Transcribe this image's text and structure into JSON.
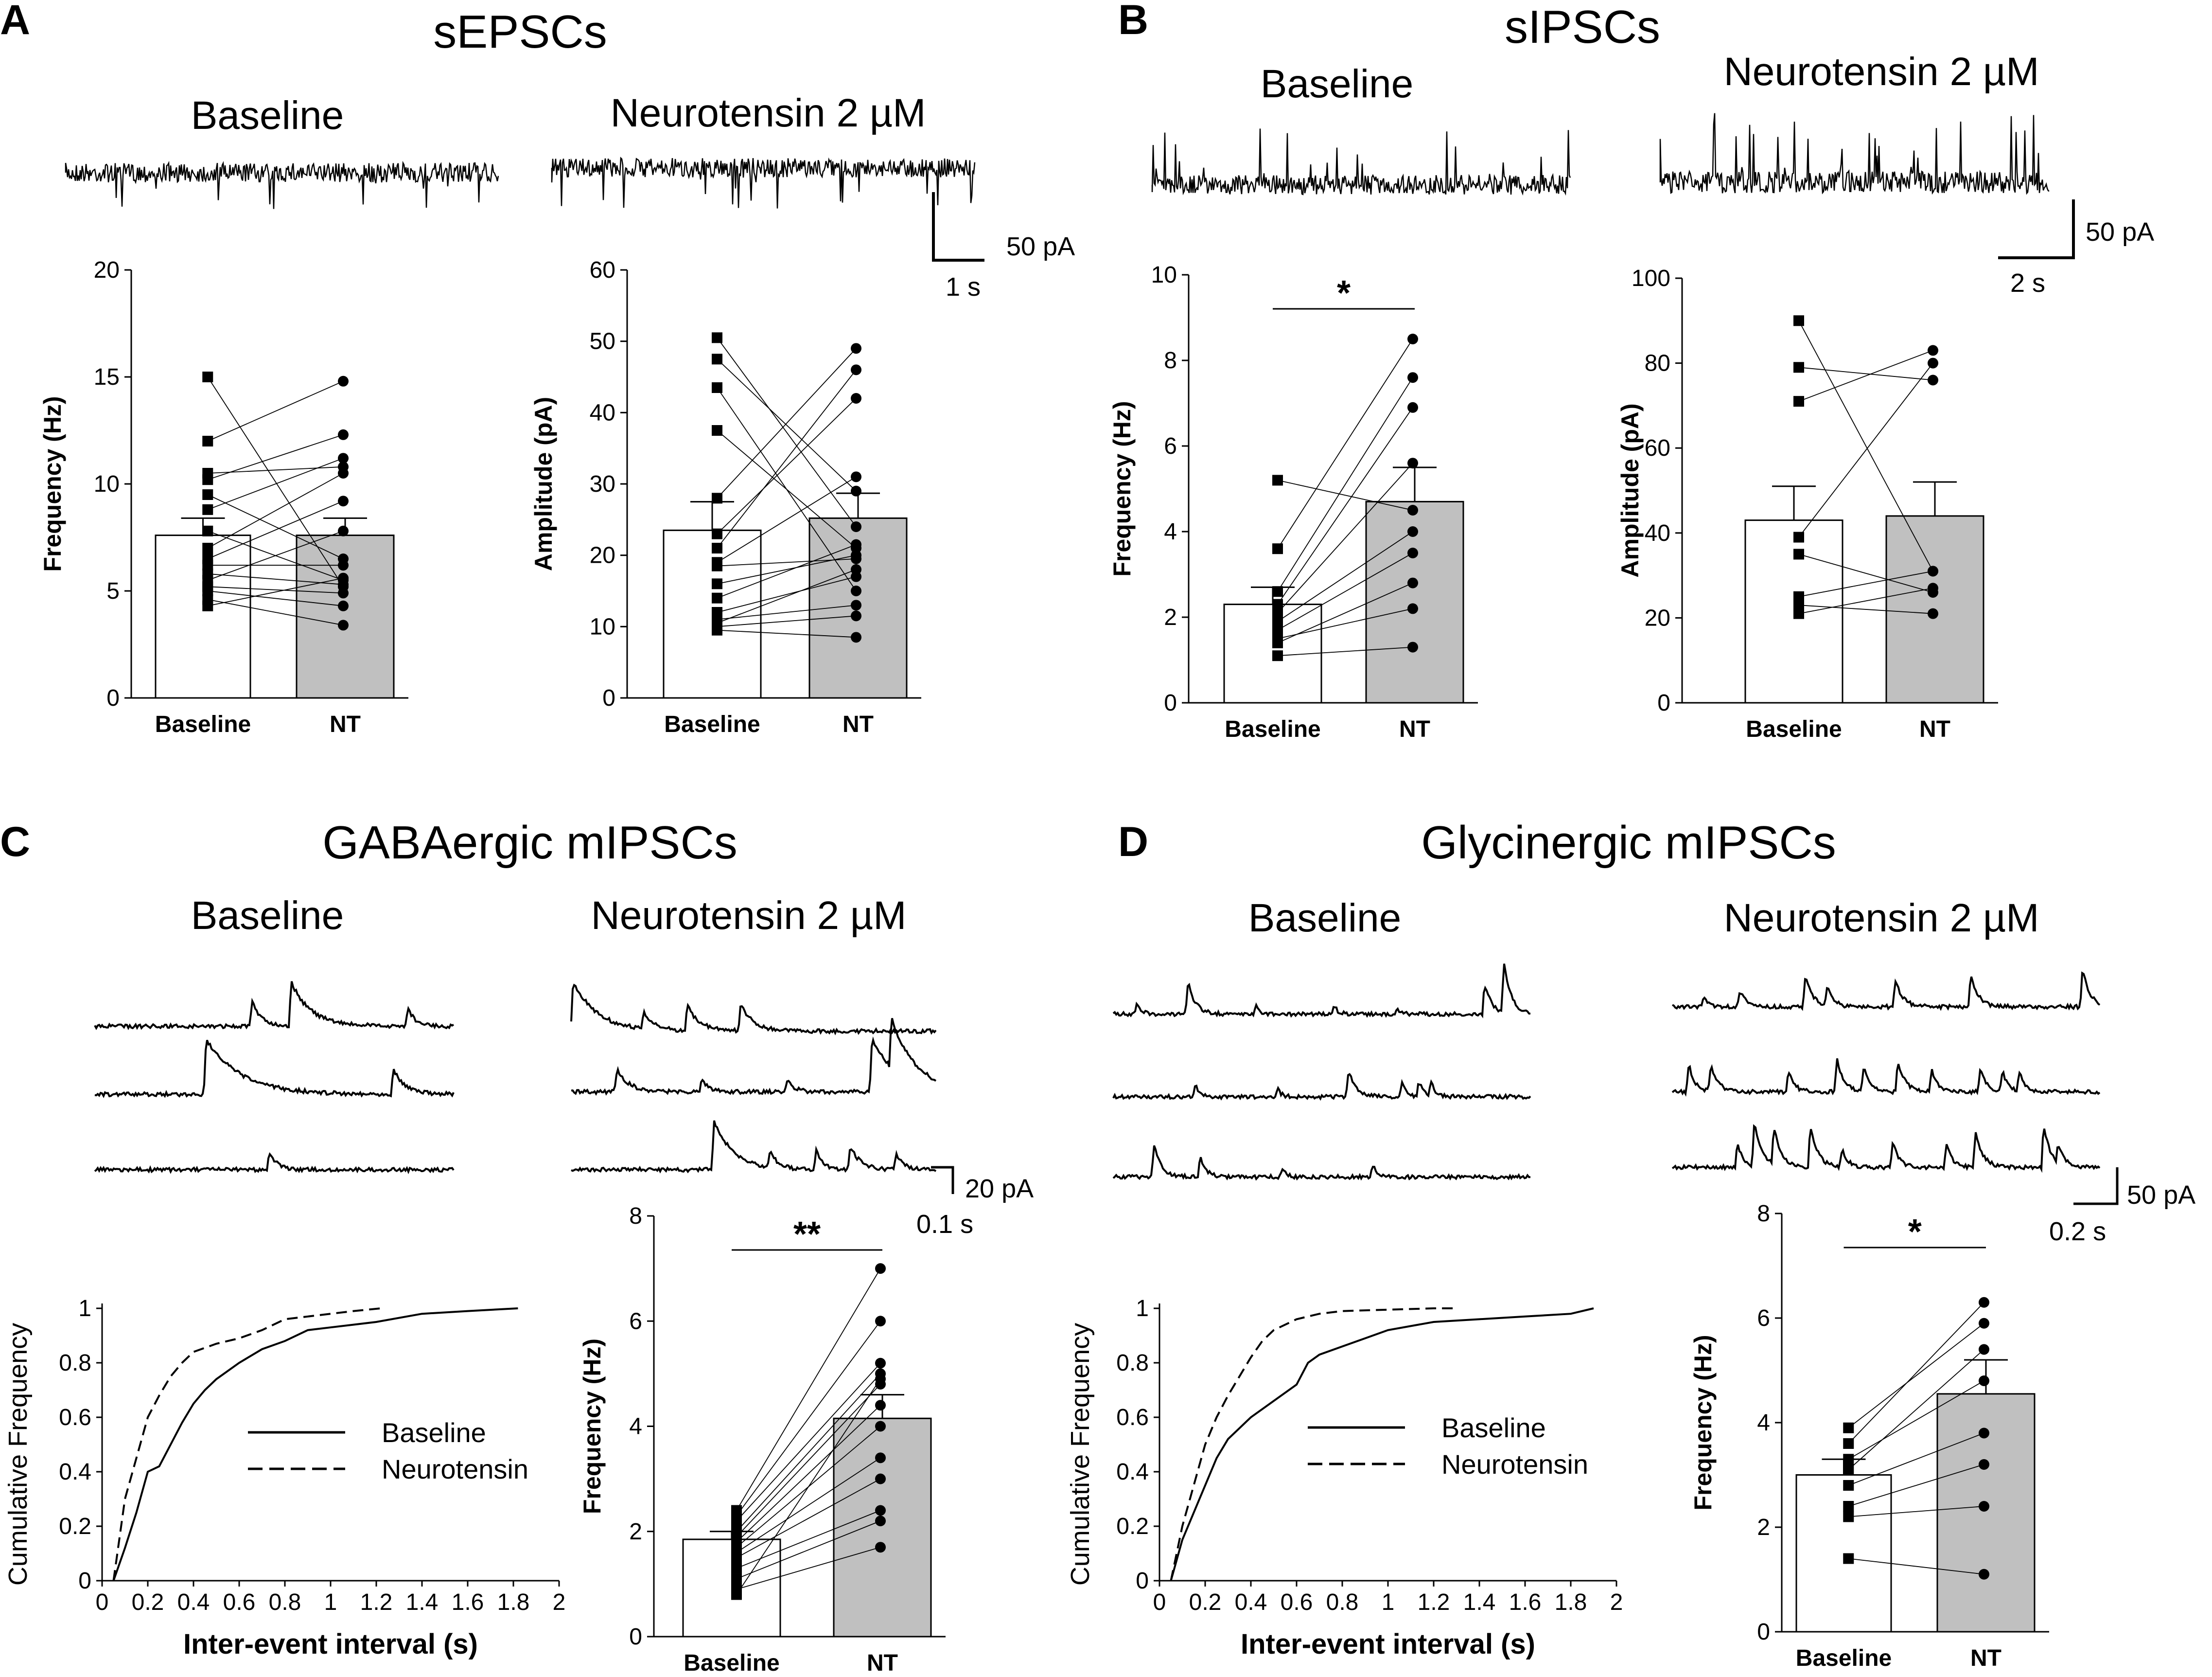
{
  "panels": [
    {
      "letter": "A",
      "title": "sEPSCs"
    },
    {
      "letter": "B",
      "title": "sIPSCs"
    },
    {
      "letter": "C",
      "title": "GABAergic mIPSCs"
    },
    {
      "letter": "D",
      "title": "Glycinergic mIPSCs"
    }
  ],
  "conditions": {
    "baseline": "Baseline",
    "nt": "Neurotensin 2 µM"
  },
  "scale_bars": [
    {
      "id": "A",
      "amp": "50 pA",
      "time": "1 s"
    },
    {
      "id": "B",
      "amp": "50 pA",
      "time": "2 s"
    },
    {
      "id": "C",
      "amp": "20 pA",
      "time": "0.1 s"
    },
    {
      "id": "D",
      "amp": "50 pA",
      "time": "0.2 s"
    }
  ],
  "chart_data": [
    {
      "id": "A1",
      "type": "bar",
      "ylabel": "Frequency (Hz)",
      "ylim": [
        0,
        20
      ],
      "yticks": [
        0,
        5,
        10,
        15,
        20
      ],
      "categories": [
        "Baseline",
        "NT"
      ],
      "means": [
        7.6,
        7.6
      ],
      "sem": [
        0.8,
        0.8
      ],
      "significance": "",
      "paired": [
        [
          15.0,
          5.2
        ],
        [
          12.0,
          14.8
        ],
        [
          10.5,
          10.8
        ],
        [
          10.2,
          12.3
        ],
        [
          9.5,
          6.5
        ],
        [
          8.8,
          11.2
        ],
        [
          7.8,
          5.5
        ],
        [
          7.0,
          10.5
        ],
        [
          6.5,
          9.2
        ],
        [
          6.2,
          6.2
        ],
        [
          5.8,
          5.3
        ],
        [
          5.5,
          7.8
        ],
        [
          5.2,
          4.9
        ],
        [
          5.0,
          4.3
        ],
        [
          4.6,
          3.4
        ],
        [
          4.3,
          5.6
        ]
      ]
    },
    {
      "id": "A2",
      "type": "bar",
      "ylabel": "Amplitude (pA)",
      "ylim": [
        0,
        60
      ],
      "yticks": [
        0,
        10,
        20,
        30,
        40,
        50,
        60
      ],
      "categories": [
        "Baseline",
        "NT"
      ],
      "means": [
        23.5,
        25.2
      ],
      "sem": [
        4.0,
        3.5
      ],
      "significance": "",
      "paired": [
        [
          50.5,
          24.0
        ],
        [
          47.5,
          29.0
        ],
        [
          43.5,
          15.0
        ],
        [
          37.5,
          21.0
        ],
        [
          28.0,
          49.0
        ],
        [
          23.0,
          42.0
        ],
        [
          21.0,
          46.0
        ],
        [
          19.0,
          31.0
        ],
        [
          18.5,
          19.5
        ],
        [
          16.0,
          20.0
        ],
        [
          14.0,
          21.5
        ],
        [
          12.0,
          17.0
        ],
        [
          11.0,
          13.0
        ],
        [
          10.5,
          18.0
        ],
        [
          10.0,
          11.5
        ],
        [
          9.5,
          8.5
        ]
      ]
    },
    {
      "id": "B1",
      "type": "bar",
      "ylabel": "Frequency (Hz)",
      "ylim": [
        0,
        10
      ],
      "yticks": [
        0,
        2,
        4,
        6,
        8,
        10
      ],
      "categories": [
        "Baseline",
        "NT"
      ],
      "means": [
        2.3,
        4.7
      ],
      "sem": [
        0.4,
        0.8
      ],
      "significance": "*",
      "paired": [
        [
          5.2,
          4.5
        ],
        [
          3.6,
          8.5
        ],
        [
          2.6,
          7.6
        ],
        [
          2.3,
          6.9
        ],
        [
          2.1,
          5.6
        ],
        [
          1.9,
          4.0
        ],
        [
          1.7,
          3.5
        ],
        [
          1.4,
          2.8
        ],
        [
          1.1,
          1.3
        ],
        [
          1.5,
          2.2
        ]
      ]
    },
    {
      "id": "B2",
      "type": "bar",
      "ylabel": "Amplitude (pA)",
      "ylim": [
        0,
        100
      ],
      "yticks": [
        0,
        20,
        40,
        60,
        80,
        100
      ],
      "categories": [
        "Baseline",
        "NT"
      ],
      "means": [
        43,
        44
      ],
      "sem": [
        8,
        8
      ],
      "significance": "",
      "paired": [
        [
          90,
          31
        ],
        [
          79,
          76
        ],
        [
          71,
          83
        ],
        [
          39,
          80
        ],
        [
          35,
          26
        ],
        [
          25,
          31
        ],
        [
          23,
          21
        ],
        [
          21,
          27
        ]
      ]
    },
    {
      "id": "C_bar",
      "type": "bar",
      "ylabel": "Frequency (Hz)",
      "ylim": [
        0,
        8
      ],
      "yticks": [
        0,
        2,
        4,
        6,
        8
      ],
      "categories": [
        "Baseline",
        "NT"
      ],
      "means": [
        1.85,
        4.15
      ],
      "sem": [
        0.15,
        0.45
      ],
      "significance": "**",
      "paired": [
        [
          2.4,
          7.0
        ],
        [
          2.3,
          6.0
        ],
        [
          2.2,
          5.2
        ],
        [
          2.0,
          5.0
        ],
        [
          1.9,
          4.8
        ],
        [
          1.8,
          4.4
        ],
        [
          1.7,
          4.0
        ],
        [
          1.6,
          3.4
        ],
        [
          1.5,
          3.0
        ],
        [
          1.3,
          2.4
        ],
        [
          1.1,
          2.2
        ],
        [
          0.9,
          1.7
        ],
        [
          0.8,
          4.9
        ]
      ]
    },
    {
      "id": "D_bar",
      "type": "bar",
      "ylabel": "Frequency (Hz)",
      "ylim": [
        0,
        8
      ],
      "yticks": [
        0,
        2,
        4,
        6,
        8
      ],
      "categories": [
        "Baseline",
        "NT"
      ],
      "means": [
        3.0,
        4.55
      ],
      "sem": [
        0.3,
        0.65
      ],
      "significance": "*",
      "paired": [
        [
          3.9,
          5.9
        ],
        [
          3.6,
          6.3
        ],
        [
          3.3,
          4.8
        ],
        [
          3.1,
          5.4
        ],
        [
          2.8,
          3.8
        ],
        [
          2.4,
          3.2
        ],
        [
          2.2,
          2.4
        ],
        [
          1.4,
          1.1
        ]
      ]
    },
    {
      "id": "C_cdf",
      "type": "line",
      "xlabel": "Inter-event interval (s)",
      "ylabel": "Cumulative Frequency",
      "xlim": [
        0,
        2.0
      ],
      "ylim": [
        0,
        1.0
      ],
      "xticks": [
        0,
        0.2,
        0.4,
        0.6,
        0.8,
        1.0,
        1.2,
        1.4,
        1.6,
        1.8,
        2.0
      ],
      "yticks": [
        0,
        0.2,
        0.4,
        0.6,
        0.8,
        1.0
      ],
      "legend": "center-right",
      "series": [
        {
          "name": "Baseline",
          "dash": "solid",
          "x": [
            0.05,
            0.1,
            0.15,
            0.2,
            0.25,
            0.3,
            0.35,
            0.4,
            0.45,
            0.5,
            0.6,
            0.7,
            0.8,
            0.9,
            1.0,
            1.1,
            1.2,
            1.4,
            1.6,
            1.82
          ],
          "y": [
            0,
            0.12,
            0.25,
            0.4,
            0.42,
            0.5,
            0.58,
            0.65,
            0.7,
            0.74,
            0.8,
            0.85,
            0.88,
            0.92,
            0.93,
            0.94,
            0.95,
            0.98,
            0.99,
            1.0
          ]
        },
        {
          "name": "Neurotensin",
          "dash": "dashed",
          "x": [
            0.05,
            0.1,
            0.15,
            0.2,
            0.25,
            0.3,
            0.35,
            0.4,
            0.5,
            0.6,
            0.7,
            0.8,
            0.9,
            1.0,
            1.1,
            1.22
          ],
          "y": [
            0,
            0.3,
            0.45,
            0.6,
            0.68,
            0.75,
            0.8,
            0.84,
            0.87,
            0.89,
            0.92,
            0.96,
            0.97,
            0.98,
            0.99,
            1.0
          ]
        }
      ]
    },
    {
      "id": "D_cdf",
      "type": "line",
      "xlabel": "Inter-event interval (s)",
      "ylabel": "Cumulative Frequency",
      "xlim": [
        0,
        2.0
      ],
      "ylim": [
        0,
        1.0
      ],
      "xticks": [
        0,
        0.2,
        0.4,
        0.6,
        0.8,
        1.0,
        1.2,
        1.4,
        1.6,
        1.8,
        2.0
      ],
      "yticks": [
        0,
        0.2,
        0.4,
        0.6,
        0.8,
        1.0
      ],
      "legend": "center-right",
      "series": [
        {
          "name": "Baseline",
          "dash": "solid",
          "x": [
            0.05,
            0.1,
            0.15,
            0.2,
            0.25,
            0.3,
            0.35,
            0.4,
            0.5,
            0.6,
            0.65,
            0.7,
            0.8,
            0.9,
            1.0,
            1.2,
            1.4,
            1.6,
            1.8,
            1.9
          ],
          "y": [
            0,
            0.15,
            0.25,
            0.35,
            0.45,
            0.52,
            0.56,
            0.6,
            0.66,
            0.72,
            0.8,
            0.83,
            0.86,
            0.89,
            0.92,
            0.95,
            0.96,
            0.97,
            0.98,
            1.0
          ]
        },
        {
          "name": "Neurotensin",
          "dash": "dashed",
          "x": [
            0.05,
            0.1,
            0.15,
            0.2,
            0.25,
            0.3,
            0.35,
            0.4,
            0.45,
            0.5,
            0.6,
            0.7,
            0.8,
            1.0,
            1.2,
            1.3
          ],
          "y": [
            0,
            0.2,
            0.35,
            0.5,
            0.6,
            0.68,
            0.75,
            0.82,
            0.88,
            0.92,
            0.96,
            0.98,
            0.99,
            0.995,
            1.0,
            1.0
          ]
        }
      ]
    }
  ]
}
